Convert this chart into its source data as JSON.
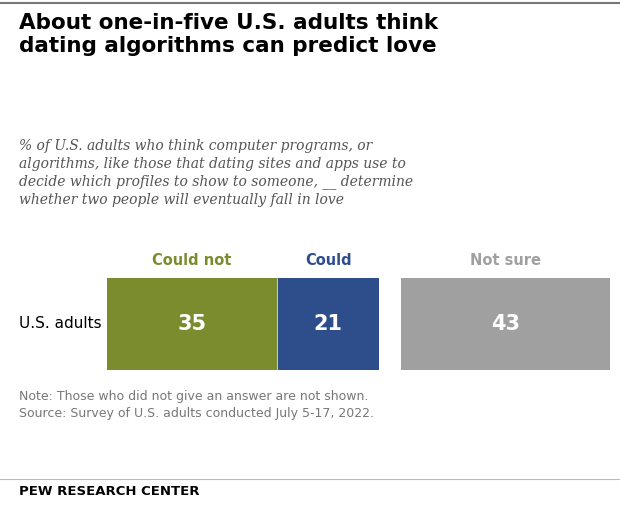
{
  "title": "About one-in-five U.S. adults think\ndating algorithms can predict love",
  "subtitle": "% of U.S. adults who think computer programs, or\nalgorithms, like those that dating sites and apps use to\ndecide which profiles to show to someone, __ determine\nwhether two people will eventually fall in love",
  "row_label": "U.S. adults",
  "categories": [
    "Could not",
    "Could",
    "Not sure"
  ],
  "values": [
    35,
    21,
    43
  ],
  "colors": [
    "#7a8c2e",
    "#2d4d8b",
    "#a0a0a0"
  ],
  "cat_colors": [
    "#7a8c2e",
    "#2d4d8b",
    "#a0a0a0"
  ],
  "value_label_color": "#ffffff",
  "note": "Note: Those who did not give an answer are not shown.\nSource: Survey of U.S. adults conducted July 5-17, 2022.",
  "footer": "PEW RESEARCH CENTER",
  "background_color": "#ffffff",
  "top_line_color": "#777777",
  "bottom_line_color": "#000000"
}
